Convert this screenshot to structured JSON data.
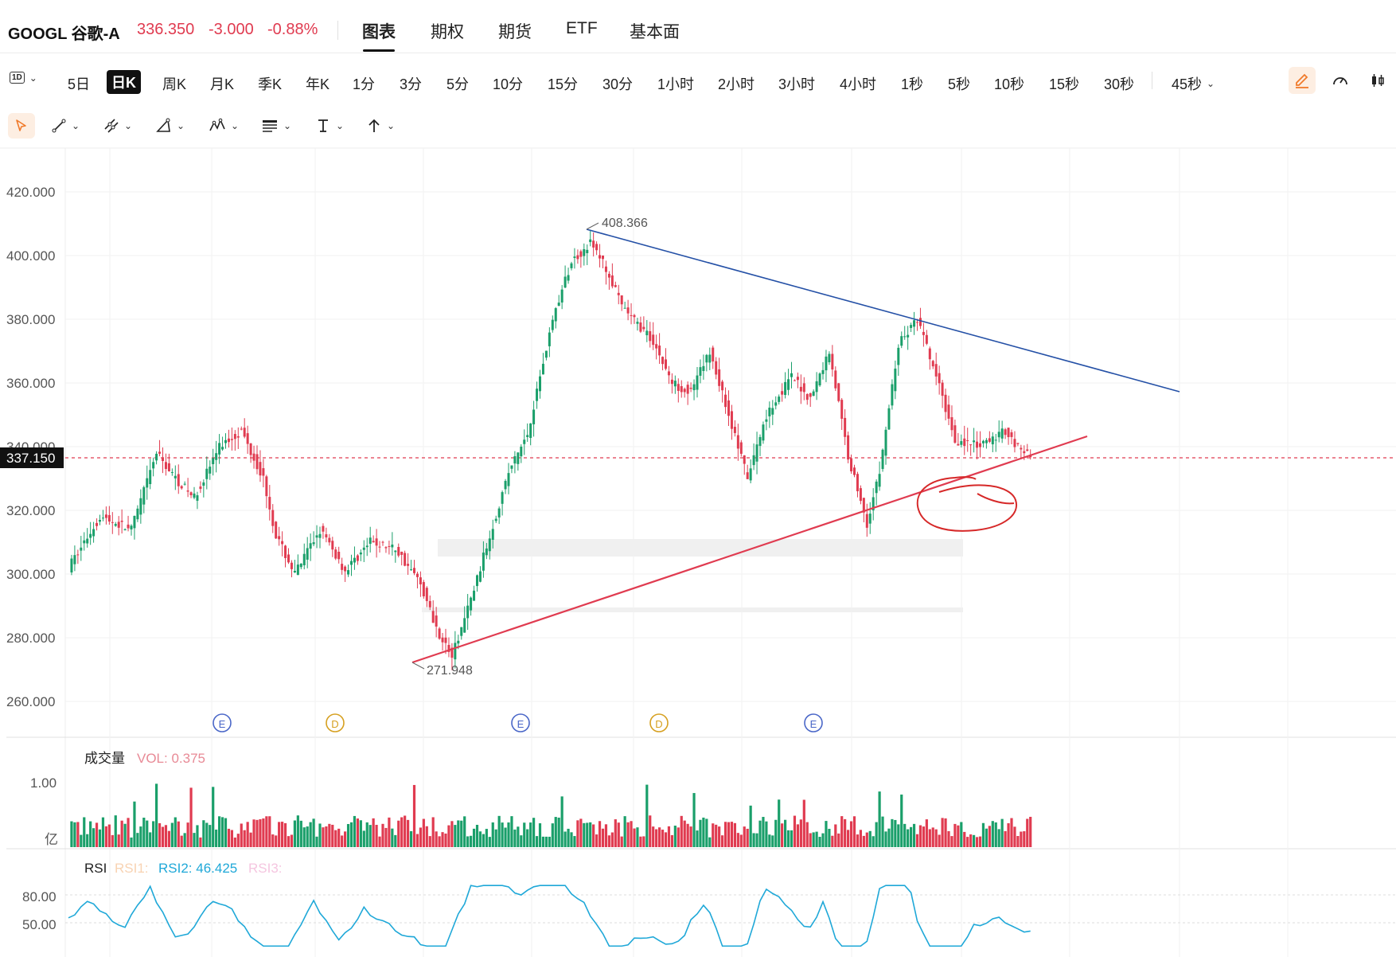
{
  "header": {
    "ticker": "GOOGL 谷歌-A",
    "price": "336.350",
    "change": "-3.000",
    "change_pct": "-0.88%",
    "tabs": [
      {
        "label": "图表",
        "active": true
      },
      {
        "label": "期权"
      },
      {
        "label": "期货"
      },
      {
        "label": "ETF"
      },
      {
        "label": "基本面"
      }
    ]
  },
  "period_bar": {
    "selector": "1D",
    "items": [
      "5日",
      "日K",
      "周K",
      "月K",
      "季K",
      "年K",
      "1分",
      "3分",
      "5分",
      "10分",
      "15分",
      "30分",
      "1小时",
      "2小时",
      "3小时",
      "4小时",
      "1秒",
      "5秒",
      "10秒",
      "15秒",
      "30秒"
    ],
    "active": "日K",
    "more": "45秒"
  },
  "draw_tools": [
    "cursor-icon",
    "line-tool-icon",
    "multi-line-tool-icon",
    "triangle-tool-icon",
    "pattern-tool-icon",
    "text-block-tool-icon",
    "text-tool-icon",
    "arrow-tool-icon"
  ],
  "right_tools": [
    "pen-icon",
    "gauge-icon",
    "candle-style-icon"
  ],
  "colors": {
    "up": "#1a9f6a",
    "down": "#e03b50",
    "resistance": "#2450a6",
    "support": "#e03b50",
    "rsi": "#1fa8d8"
  },
  "chart": {
    "price_axis": [
      "420.000",
      "400.000",
      "380.000",
      "360.000",
      "340.000",
      "320.000",
      "300.000",
      "280.000",
      "260.000"
    ],
    "current_price_tag": "337.150",
    "high_label": "408.366",
    "low_label": "271.948",
    "events": [
      "E",
      "D",
      "E",
      "D",
      "E"
    ]
  },
  "volume": {
    "title": "成交量",
    "indicator": "VOL: 0.375",
    "axis": [
      "1.00"
    ],
    "unit": "亿"
  },
  "rsi": {
    "title": "RSI",
    "rsi1": "RSI1:",
    "rsi2": "RSI2: 46.425",
    "rsi3": "RSI3:",
    "axis": [
      "80.00",
      "50.00"
    ]
  }
}
